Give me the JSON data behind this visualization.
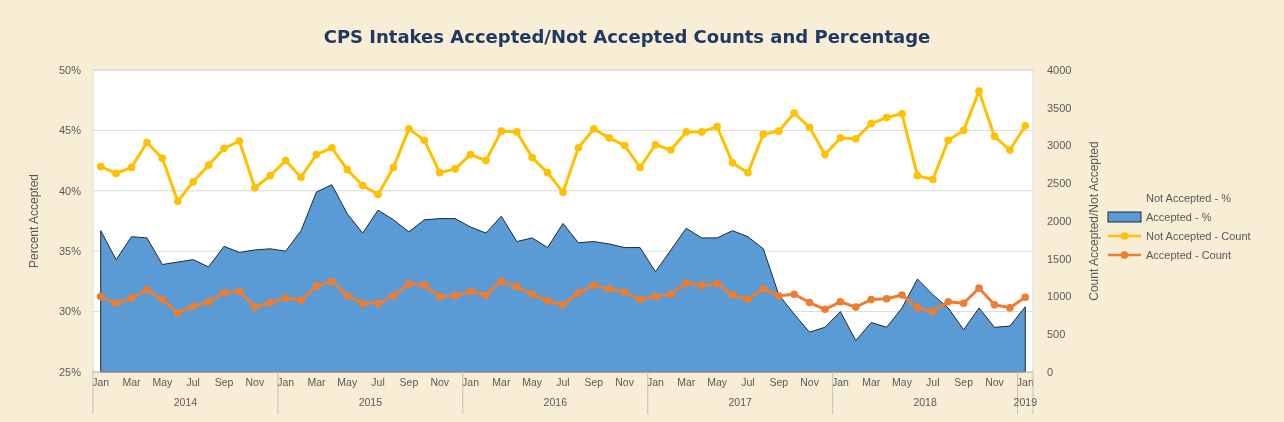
{
  "chart_data": {
    "type": "area",
    "title": "CPS Intakes Accepted/Not Accepted Counts and Percentage",
    "ylabel": "Percent Accepted",
    "y2label": "Count Accepted/Not Accepted",
    "categories": [
      "Jan",
      null,
      "Mar",
      null,
      "May",
      null,
      "Jul",
      null,
      "Sep",
      null,
      "Nov",
      null,
      "Jan",
      null,
      "Mar",
      null,
      "May",
      null,
      "Jul",
      null,
      "Sep",
      null,
      "Nov",
      null,
      "Jan",
      null,
      "Mar",
      null,
      "May",
      null,
      "Jul",
      null,
      "Sep",
      null,
      "Nov",
      null,
      "Jan",
      null,
      "Mar",
      null,
      "May",
      null,
      "Jul",
      null,
      "Sep",
      null,
      "Nov",
      null,
      "Jan",
      null,
      "Mar",
      null,
      "May",
      null,
      "Jul",
      null,
      "Sep",
      null,
      "Nov",
      null,
      "Jan"
    ],
    "series": [
      {
        "name": "Not Accepted - %",
        "values": [
          null,
          null,
          null,
          null,
          null,
          null,
          null,
          null,
          null,
          null,
          null,
          null,
          null,
          null,
          null,
          null,
          null,
          null,
          null,
          null,
          null,
          null,
          null,
          null,
          null,
          null,
          null,
          null,
          null,
          null,
          null,
          null,
          null,
          null,
          null,
          null,
          null,
          null,
          null,
          null,
          null,
          null,
          null,
          null,
          null,
          null,
          null,
          null,
          null,
          null,
          null,
          null,
          null,
          null,
          null,
          null,
          null,
          null,
          null,
          null,
          null
        ]
      },
      {
        "name": "Accepted - %",
        "color": "#5b9bd5",
        "values": [
          36.7,
          34.3,
          36.2,
          36.1,
          33.9,
          34.1,
          34.3,
          33.7,
          35.4,
          34.9,
          35.1,
          35.2,
          35.0,
          36.7,
          39.9,
          40.5,
          38.1,
          36.5,
          38.4,
          37.6,
          36.6,
          37.6,
          37.7,
          37.7,
          37.0,
          36.5,
          37.9,
          35.8,
          36.1,
          35.3,
          37.3,
          35.7,
          35.8,
          35.6,
          35.3,
          35.3,
          33.3,
          35.1,
          36.9,
          36.1,
          36.1,
          36.7,
          36.2,
          35.2,
          31.4,
          29.8,
          28.3,
          28.7,
          30.0,
          27.6,
          29.1,
          28.7,
          30.3,
          32.7,
          31.4,
          30.3,
          28.5,
          30.3,
          28.7,
          28.8,
          30.4
        ]
      },
      {
        "name": "Not Accepted - Count",
        "type": "line",
        "axis": "y2",
        "marker": "circle",
        "color": "#ffc000",
        "values": [
          2720,
          2630,
          2710,
          3040,
          2830,
          2260,
          2520,
          2740,
          2960,
          3060,
          2440,
          2600,
          2800,
          2580,
          2880,
          2970,
          2680,
          2470,
          2350,
          2710,
          3220,
          3070,
          2640,
          2690,
          2880,
          2800,
          3190,
          3180,
          2840,
          2640,
          2380,
          2970,
          3220,
          3100,
          3000,
          2710,
          3010,
          2940,
          3180,
          3180,
          3250,
          2770,
          2640,
          3150,
          3190,
          3430,
          3240,
          2880,
          3100,
          3090,
          3290,
          3370,
          3420,
          2600,
          2550,
          3070,
          3200,
          3720,
          3120,
          2940,
          3260
        ]
      },
      {
        "name": "Accepted - Count",
        "type": "line",
        "axis": "y2",
        "marker": "circle",
        "color": "#ed7d31",
        "values": [
          1000,
          910,
          980,
          1090,
          960,
          780,
          870,
          930,
          1050,
          1070,
          860,
          920,
          980,
          950,
          1140,
          1200,
          1010,
          910,
          910,
          1010,
          1170,
          1150,
          1000,
          1010,
          1070,
          1020,
          1200,
          1130,
          1030,
          940,
          890,
          1050,
          1150,
          1100,
          1060,
          960,
          1000,
          1030,
          1180,
          1150,
          1170,
          1020,
          960,
          1100,
          1010,
          1030,
          920,
          830,
          930,
          860,
          960,
          970,
          1020,
          850,
          800,
          930,
          910,
          1110,
          890,
          850,
          990
        ]
      }
    ],
    "ylim": [
      25,
      50
    ],
    "yticks": [
      {
        "value": 25,
        "label": "25%"
      },
      {
        "value": 30,
        "label": "30%"
      },
      {
        "value": 35,
        "label": "35%"
      },
      {
        "value": 40,
        "label": "40%"
      },
      {
        "value": 45,
        "label": "45%"
      },
      {
        "value": 50,
        "label": "50%"
      }
    ],
    "y2lim": [
      0,
      4000
    ],
    "y2ticks": [
      0,
      500,
      1000,
      1500,
      2000,
      2500,
      3000,
      3500,
      4000
    ],
    "grid": "y",
    "legend": "right",
    "annotations": [
      "2014",
      "2015",
      "2016",
      "2017",
      "2018",
      "2019"
    ]
  }
}
